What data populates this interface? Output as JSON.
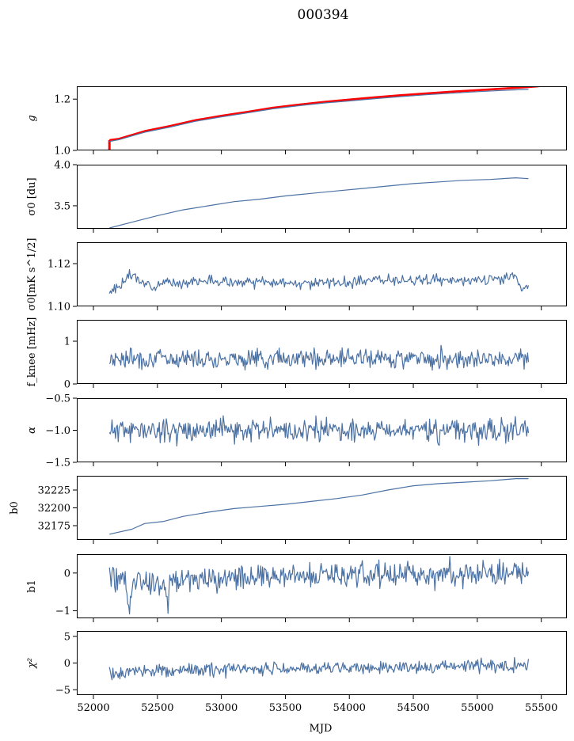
{
  "figure": {
    "title": "000394",
    "xlabel": "MJD"
  },
  "chart_data": [
    {
      "type": "line",
      "ylabel": "g",
      "ylabel_italic": true,
      "ylim": [
        1.0,
        1.25
      ],
      "yticks": [
        1.0,
        1.2
      ],
      "ytick_labels": [
        "1.0",
        "1.2"
      ],
      "series": [
        {
          "color": "#ff0000",
          "x": [
            52125,
            52200,
            52400,
            52600,
            52800,
            53000,
            53200,
            53400,
            53600,
            53800,
            54000,
            54200,
            54400,
            54600,
            54800,
            55000,
            55200,
            55400,
            55480
          ],
          "y": [
            1.04,
            1.045,
            1.075,
            1.095,
            1.118,
            1.135,
            1.15,
            1.166,
            1.178,
            1.189,
            1.198,
            1.207,
            1.215,
            1.222,
            1.229,
            1.235,
            1.241,
            1.247,
            1.25
          ]
        },
        {
          "color": "#4c72a4",
          "x": [
            52125,
            52200,
            52400,
            52600,
            52800,
            53000,
            53200,
            53400,
            53600,
            53800,
            54000,
            54200,
            54400,
            54600,
            54800,
            55000,
            55200,
            55400
          ],
          "y": [
            1.035,
            1.042,
            1.071,
            1.091,
            1.114,
            1.131,
            1.146,
            1.162,
            1.174,
            1.185,
            1.193,
            1.202,
            1.21,
            1.217,
            1.223,
            1.229,
            1.234,
            1.238
          ]
        }
      ]
    },
    {
      "type": "line",
      "ylabel": "σ0 [du]",
      "ylim": [
        3.22,
        4.0
      ],
      "yticks": [
        3.5,
        4.0
      ],
      "ytick_labels": [
        "3.5",
        "4.0"
      ],
      "series": [
        {
          "color": "#4c72a4",
          "style": "smooth",
          "x": [
            52125,
            52300,
            52500,
            52700,
            52900,
            53100,
            53300,
            53500,
            53700,
            53900,
            54100,
            54300,
            54500,
            54700,
            54900,
            55100,
            55300,
            55400
          ],
          "y": [
            3.23,
            3.3,
            3.38,
            3.45,
            3.5,
            3.55,
            3.58,
            3.62,
            3.65,
            3.68,
            3.71,
            3.74,
            3.77,
            3.79,
            3.81,
            3.82,
            3.84,
            3.83
          ]
        }
      ]
    },
    {
      "type": "line",
      "ylabel": "σ0[mK s^1/2]",
      "ylim": [
        1.1,
        1.13
      ],
      "yticks": [
        1.1,
        1.12
      ],
      "ytick_labels": [
        "1.10",
        "1.12"
      ],
      "series": [
        {
          "color": "#4c72a4",
          "style": "noisy",
          "n": 420,
          "amplitude": 0.0012,
          "seed": 3,
          "x": [
            52125,
            52150,
            52300,
            52400,
            52600,
            52900,
            53200,
            53600,
            54000,
            54300,
            54700,
            55000,
            55300,
            55350,
            55400
          ],
          "y": [
            1.106,
            1.107,
            1.115,
            1.11,
            1.111,
            1.112,
            1.111,
            1.111,
            1.111,
            1.113,
            1.112,
            1.112,
            1.114,
            1.108,
            1.11
          ]
        }
      ]
    },
    {
      "type": "line",
      "ylabel": "f_knee [mHz]",
      "ylim": [
        0,
        1.5
      ],
      "yticks": [
        0,
        1
      ],
      "ytick_labels": [
        "0",
        "1"
      ],
      "series": [
        {
          "color": "#4c72a4",
          "style": "noisy",
          "n": 480,
          "amplitude": 0.11,
          "seed": 7,
          "x": [
            52125,
            55400
          ],
          "y": [
            0.6,
            0.6
          ]
        }
      ]
    },
    {
      "type": "line",
      "ylabel": "α",
      "ylabel_italic": true,
      "ylim": [
        -1.5,
        -0.5
      ],
      "yticks": [
        -1.5,
        -1.0,
        -0.5
      ],
      "ytick_labels": [
        "−1.5",
        "−1.0",
        "−0.5"
      ],
      "series": [
        {
          "color": "#4c72a4",
          "style": "noisy",
          "n": 480,
          "amplitude": 0.09,
          "seed": 11,
          "x": [
            52125,
            55400
          ],
          "y": [
            -1.0,
            -1.0
          ]
        }
      ]
    },
    {
      "type": "line",
      "ylabel": "b0",
      "ylim": [
        32155,
        32245
      ],
      "yticks": [
        32175,
        32200,
        32225
      ],
      "ytick_labels": [
        "32175",
        "32200",
        "32225"
      ],
      "series": [
        {
          "color": "#4c72a4",
          "style": "smooth",
          "x": [
            52125,
            52300,
            52400,
            52550,
            52700,
            52900,
            53100,
            53300,
            53500,
            53700,
            53900,
            54100,
            54300,
            54500,
            54700,
            54900,
            55100,
            55300,
            55400
          ],
          "y": [
            32163,
            32170,
            32178,
            32181,
            32188,
            32194,
            32199,
            32202,
            32205,
            32209,
            32213,
            32218,
            32225,
            32231,
            32234,
            32236,
            32238,
            32241,
            32241
          ]
        }
      ]
    },
    {
      "type": "line",
      "ylabel": "b1",
      "ylim": [
        -1.2,
        0.5
      ],
      "yticks": [
        -1,
        0
      ],
      "ytick_labels": [
        "−1",
        "0"
      ],
      "series": [
        {
          "color": "#4c72a4",
          "style": "noisy",
          "n": 480,
          "amplitude": 0.17,
          "seed": 19,
          "x": [
            52125,
            52250,
            52280,
            52310,
            52560,
            52580,
            52600,
            53500,
            55400
          ],
          "y": [
            -0.05,
            -0.2,
            -1.1,
            -0.15,
            -0.3,
            -1.0,
            -0.2,
            -0.05,
            0.0
          ]
        }
      ]
    },
    {
      "type": "line",
      "ylabel": "χ²",
      "ylabel_italic": true,
      "ylim": [
        -6,
        6
      ],
      "yticks": [
        -5,
        0,
        5
      ],
      "ytick_labels": [
        "−5",
        "0",
        "5"
      ],
      "xlim": [
        51870,
        55700
      ],
      "xticks": [
        52000,
        52500,
        53000,
        53500,
        54000,
        54500,
        55000,
        55500
      ],
      "xtick_labels": [
        "52000",
        "52500",
        "53000",
        "53500",
        "54000",
        "54500",
        "55000",
        "55500"
      ],
      "series": [
        {
          "color": "#4c72a4",
          "style": "noisy",
          "n": 480,
          "amplitude": 0.6,
          "seed": 29,
          "x": [
            52125,
            52500,
            53000,
            54000,
            55400
          ],
          "y": [
            -2.0,
            -1.5,
            -1.2,
            -0.9,
            -0.5
          ]
        }
      ]
    }
  ]
}
